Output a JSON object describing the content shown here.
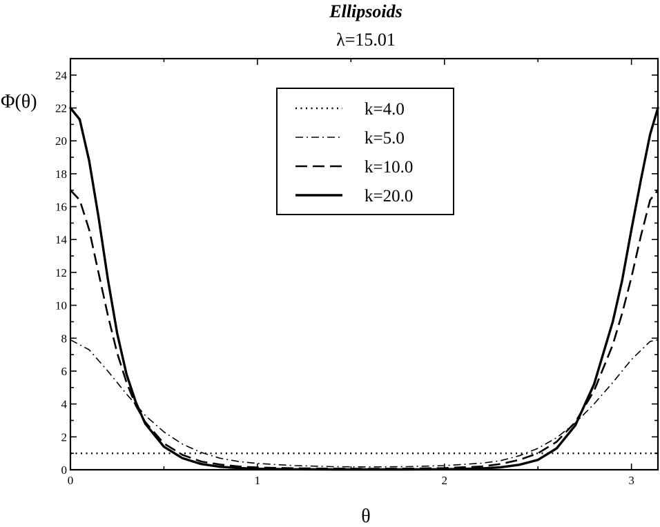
{
  "chart_data": {
    "type": "line",
    "title": "Ellipsoids",
    "subtitle": "λ=15.01",
    "xlabel": "θ",
    "ylabel": "Φ(θ)",
    "xlim": [
      0,
      3.1416
    ],
    "ylim": [
      0,
      25
    ],
    "x_ticks": [
      0,
      1,
      2,
      3
    ],
    "y_ticks": [
      0,
      2,
      4,
      6,
      8,
      10,
      12,
      14,
      16,
      18,
      20,
      22,
      24
    ],
    "grid": false,
    "legend_position": "top-center",
    "series": [
      {
        "name": "k=4.0",
        "style": "dotted",
        "x": [
          0,
          3.1416
        ],
        "y": [
          1.0,
          1.0
        ]
      },
      {
        "name": "k=5.0",
        "style": "dashdot",
        "x": [
          0,
          0.1,
          0.2,
          0.3,
          0.4,
          0.5,
          0.6,
          0.7,
          0.8,
          0.9,
          1.0,
          1.2,
          1.4,
          1.5708,
          1.8,
          2.0,
          2.2,
          2.3,
          2.4,
          2.5,
          2.6,
          2.7,
          2.8,
          2.9,
          3.0,
          3.1,
          3.1416
        ],
        "y": [
          7.9,
          7.3,
          6.0,
          4.6,
          3.3,
          2.3,
          1.55,
          1.05,
          0.7,
          0.5,
          0.38,
          0.25,
          0.19,
          0.17,
          0.19,
          0.25,
          0.4,
          0.55,
          0.85,
          1.3,
          1.95,
          2.85,
          4.0,
          5.3,
          6.7,
          7.8,
          7.9
        ]
      },
      {
        "name": "k=10.0",
        "style": "dashed",
        "x": [
          0,
          0.05,
          0.1,
          0.15,
          0.2,
          0.25,
          0.3,
          0.35,
          0.4,
          0.5,
          0.6,
          0.7,
          0.8,
          0.9,
          1.0,
          1.2,
          1.4,
          1.5708,
          1.8,
          2.0,
          2.2,
          2.3,
          2.4,
          2.5,
          2.6,
          2.7,
          2.8,
          2.9,
          2.95,
          3.0,
          3.05,
          3.1,
          3.1416
        ],
        "y": [
          17.0,
          16.4,
          14.6,
          12.0,
          9.4,
          7.1,
          5.3,
          3.9,
          2.9,
          1.6,
          0.9,
          0.5,
          0.32,
          0.2,
          0.14,
          0.09,
          0.07,
          0.06,
          0.07,
          0.1,
          0.2,
          0.35,
          0.6,
          1.0,
          1.7,
          2.9,
          4.8,
          7.6,
          9.5,
          11.7,
          14.2,
          16.4,
          17.0
        ]
      },
      {
        "name": "k=20.0",
        "style": "solid",
        "x": [
          0,
          0.05,
          0.1,
          0.15,
          0.2,
          0.25,
          0.3,
          0.35,
          0.4,
          0.5,
          0.6,
          0.7,
          0.8,
          0.9,
          1.0,
          1.2,
          1.4,
          1.5708,
          1.8,
          2.0,
          2.2,
          2.3,
          2.4,
          2.5,
          2.6,
          2.7,
          2.8,
          2.9,
          2.95,
          3.0,
          3.05,
          3.1,
          3.1416
        ],
        "y": [
          22.0,
          21.3,
          18.8,
          15.4,
          11.6,
          8.3,
          5.8,
          4.1,
          2.8,
          1.4,
          0.7,
          0.35,
          0.18,
          0.1,
          0.06,
          0.03,
          0.02,
          0.02,
          0.02,
          0.03,
          0.08,
          0.15,
          0.3,
          0.6,
          1.3,
          2.7,
          5.2,
          9.0,
          11.5,
          14.6,
          17.6,
          20.4,
          22.0
        ]
      }
    ]
  }
}
